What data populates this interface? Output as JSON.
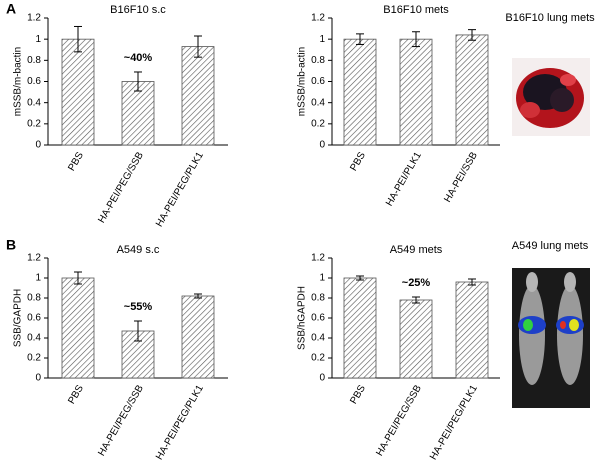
{
  "panels": [
    {
      "label": "A",
      "image_title": "B16F10 lung mets"
    },
    {
      "label": "B",
      "image_title": "A549 lung mets"
    }
  ],
  "chart_data": [
    {
      "type": "bar",
      "title": "B16F10 s.c",
      "y_label": "mSSB/m-bactin",
      "categories": [
        "PBS",
        "HA-PEI/PEG/SSB",
        "HA-PEI/PEG/PLK1"
      ],
      "values": [
        1.0,
        0.6,
        0.93
      ],
      "errors": [
        0.12,
        0.09,
        0.1
      ],
      "annotation": "~40%",
      "ylim": [
        0,
        1.2
      ],
      "yticks": [
        0,
        0.2,
        0.4,
        0.6,
        0.8,
        1,
        1.2
      ],
      "color": "#555555"
    },
    {
      "type": "bar",
      "title": "B16F10 mets",
      "y_label": "mSSB/mb-actin",
      "categories": [
        "PBS",
        "HA-PEI/PLK1",
        "HA-PEI/SSB"
      ],
      "values": [
        1.0,
        1.0,
        1.04
      ],
      "errors": [
        0.05,
        0.07,
        0.05
      ],
      "ylim": [
        0,
        1.2
      ],
      "yticks": [
        0,
        0.2,
        0.4,
        0.6,
        0.8,
        1,
        1.2
      ],
      "color": "#555555"
    },
    {
      "type": "bar",
      "title": "A549 s.c",
      "y_label": "SSB/GAPDH",
      "categories": [
        "PBS",
        "HA-PEI/PEG/SSB",
        "HA-PEI/PEG/PLK1"
      ],
      "values": [
        1.0,
        0.47,
        0.82
      ],
      "errors": [
        0.06,
        0.1,
        0.02
      ],
      "annotation": "~55%",
      "ylim": [
        0,
        1.2
      ],
      "yticks": [
        0,
        0.2,
        0.4,
        0.6,
        0.8,
        1,
        1.2
      ],
      "color": "#555555"
    },
    {
      "type": "bar",
      "title": "A549 mets",
      "y_label": "SSB/hGAPDH",
      "categories": [
        "PBS",
        "HA-PEI/PEG/SSB",
        "HA-PEI/PEG/PLK1"
      ],
      "values": [
        1.0,
        0.78,
        0.96
      ],
      "errors": [
        0.02,
        0.03,
        0.03
      ],
      "annotation": "~25%",
      "ylim": [
        0,
        1.2
      ],
      "yticks": [
        0,
        0.2,
        0.4,
        0.6,
        0.8,
        1,
        1.2
      ],
      "color": "#555555"
    }
  ]
}
